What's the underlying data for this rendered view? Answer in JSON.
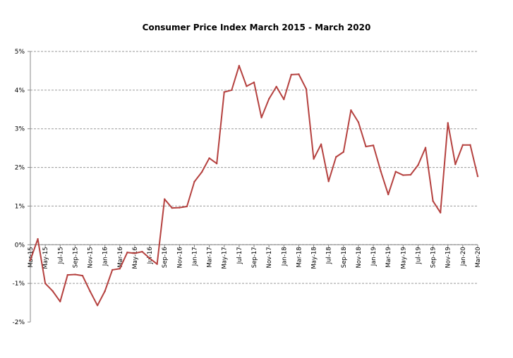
{
  "chart_data": {
    "type": "line",
    "title": "Consumer Price Index March 2015 - March 2020",
    "xlabel": "",
    "ylabel": "",
    "ylim": [
      -2,
      5
    ],
    "y_ticks": [
      "-2%",
      "-1%",
      "0%",
      "1%",
      "2%",
      "3%",
      "4%",
      "5%"
    ],
    "grid": true,
    "legend": "none",
    "line_color": "#b5413f",
    "x": [
      "Mar-15",
      "Apr-15",
      "May-15",
      "Jun-15",
      "Jul-15",
      "Aug-15",
      "Sep-15",
      "Oct-15",
      "Nov-15",
      "Dec-15",
      "Jan-16",
      "Feb-16",
      "Mar-16",
      "Apr-16",
      "May-16",
      "Jun-16",
      "Jul-16",
      "Aug-16",
      "Sep-16",
      "Oct-16",
      "Nov-16",
      "Dec-16",
      "Jan-17",
      "Feb-17",
      "Mar-17",
      "Apr-17",
      "May-17",
      "Jun-17",
      "Jul-17",
      "Aug-17",
      "Sep-17",
      "Oct-17",
      "Nov-17",
      "Dec-17",
      "Jan-18",
      "Feb-18",
      "Mar-18",
      "Apr-18",
      "May-18",
      "Jun-18",
      "Jul-18",
      "Aug-18",
      "Sep-18",
      "Oct-18",
      "Nov-18",
      "Dec-18",
      "Jan-19",
      "Feb-19",
      "Mar-19",
      "Apr-19",
      "May-19",
      "Jun-19",
      "Jul-19",
      "Aug-19",
      "Sep-19",
      "Oct-19",
      "Nov-19",
      "Dec-19",
      "Jan-20",
      "Feb-20",
      "Mar-20"
    ],
    "x_tick_labels": [
      "Mar-15",
      "May-15",
      "Jul-15",
      "Sep-15",
      "Nov-15",
      "Jan-16",
      "Mar-16",
      "May-16",
      "Jul-16",
      "Sep-16",
      "Nov-16",
      "Jan-17",
      "Mar-17",
      "May-17",
      "Jul-17",
      "Sep-17",
      "Nov-17",
      "Jan-18",
      "Mar-18",
      "May-18",
      "Jul-18",
      "Sep-18",
      "Nov-18",
      "Jan-19",
      "Mar-19",
      "May-19",
      "Jul-19",
      "Sep-19",
      "Nov-19",
      "Jan-20",
      "Mar-20"
    ],
    "values": [
      -0.4,
      0.15,
      -1.0,
      -1.2,
      -1.47,
      -0.78,
      -0.77,
      -0.8,
      -1.2,
      -1.57,
      -1.2,
      -0.65,
      -0.62,
      -0.2,
      -0.22,
      -0.18,
      -0.35,
      -0.5,
      1.18,
      0.95,
      0.96,
      0.99,
      1.63,
      1.88,
      2.24,
      2.1,
      3.95,
      4.0,
      4.63,
      4.1,
      4.2,
      3.29,
      3.77,
      4.09,
      3.76,
      4.4,
      4.41,
      4.03,
      2.22,
      2.6,
      1.64,
      2.27,
      2.4,
      3.48,
      3.17,
      2.54,
      2.57,
      1.9,
      1.3,
      1.89,
      1.8,
      1.81,
      2.06,
      2.51,
      1.13,
      0.83,
      3.15,
      2.08,
      2.58,
      2.58,
      1.77
    ]
  }
}
